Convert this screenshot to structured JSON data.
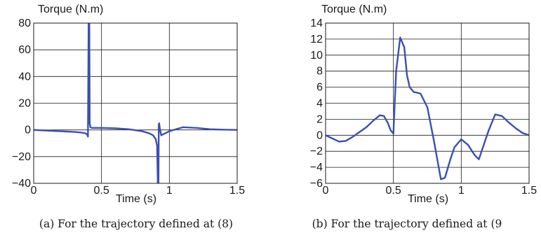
{
  "chart_data": [
    {
      "type": "line",
      "ylabel": "Torque (N.m)",
      "xlabel": "Time (s)",
      "caption": "(a) For the trajectory defined at (8)",
      "xlim": [
        0,
        1.5
      ],
      "ylim": [
        -40,
        80
      ],
      "xticks": [
        0,
        0.5,
        1,
        1.5
      ],
      "xtick_labels": [
        "0",
        "0.5",
        "1",
        "1.5"
      ],
      "yticks": [
        -40,
        -20,
        0,
        20,
        40,
        60,
        80
      ],
      "ytick_labels": [
        "−40",
        "−20",
        "0",
        "20",
        "40",
        "60",
        "80"
      ],
      "grid": true,
      "line_color": "#3a50b0",
      "series": [
        {
          "x": [
            0,
            0.1,
            0.2,
            0.3,
            0.35,
            0.38,
            0.395,
            0.4,
            0.405,
            0.41,
            0.413,
            0.418,
            0.43,
            0.5,
            0.6,
            0.7,
            0.8,
            0.85,
            0.88,
            0.9,
            0.91,
            0.915,
            0.92,
            0.922,
            0.925,
            0.93,
            0.94,
            0.96,
            1.0,
            1.1,
            1.2,
            1.3,
            1.4,
            1.5
          ],
          "y": [
            0,
            -0.5,
            -1,
            -1.5,
            -2,
            -2.5,
            -3.5,
            -5,
            80,
            80,
            5,
            2,
            1.5,
            1.5,
            1.2,
            0.5,
            -1,
            -2.5,
            -4,
            -7,
            -12,
            -40,
            -40,
            4,
            5,
            1,
            -4,
            -3,
            -1,
            2,
            1.5,
            0.5,
            0.2,
            0
          ]
        }
      ]
    },
    {
      "type": "line",
      "ylabel": "Torque (N.m)",
      "xlabel": "Time (s)",
      "caption": "(b) For the trajectory defined at (9",
      "xlim": [
        0,
        1.5
      ],
      "ylim": [
        -6,
        14
      ],
      "xticks": [
        0,
        0.5,
        1,
        1.5
      ],
      "xtick_labels": [
        "0",
        "0.5",
        "1",
        "1.5"
      ],
      "yticks": [
        -6,
        -4,
        -2,
        0,
        2,
        4,
        6,
        8,
        10,
        12,
        14
      ],
      "ytick_labels": [
        "−6",
        "−4",
        "−2",
        "0",
        "2",
        "4",
        "6",
        "8",
        "10",
        "12",
        "14"
      ],
      "grid": true,
      "line_color": "#3a50b0",
      "series": [
        {
          "x": [
            0,
            0.05,
            0.1,
            0.15,
            0.2,
            0.25,
            0.3,
            0.35,
            0.4,
            0.43,
            0.46,
            0.48,
            0.5,
            0.52,
            0.55,
            0.58,
            0.6,
            0.62,
            0.65,
            0.7,
            0.75,
            0.8,
            0.85,
            0.88,
            0.92,
            0.95,
            1.0,
            1.05,
            1.1,
            1.13,
            1.2,
            1.25,
            1.3,
            1.35,
            1.4,
            1.45,
            1.5
          ],
          "y": [
            0,
            -0.4,
            -0.8,
            -0.7,
            -0.2,
            0.4,
            1.0,
            1.8,
            2.5,
            2.4,
            1.5,
            0.6,
            0.2,
            8.0,
            12.2,
            11.0,
            7.5,
            6.0,
            5.4,
            5.2,
            3.5,
            -0.8,
            -5.5,
            -5.3,
            -3.0,
            -1.5,
            -0.5,
            -1.2,
            -2.5,
            -3.0,
            0.5,
            2.6,
            2.4,
            1.6,
            0.9,
            0.3,
            0
          ]
        }
      ]
    }
  ]
}
